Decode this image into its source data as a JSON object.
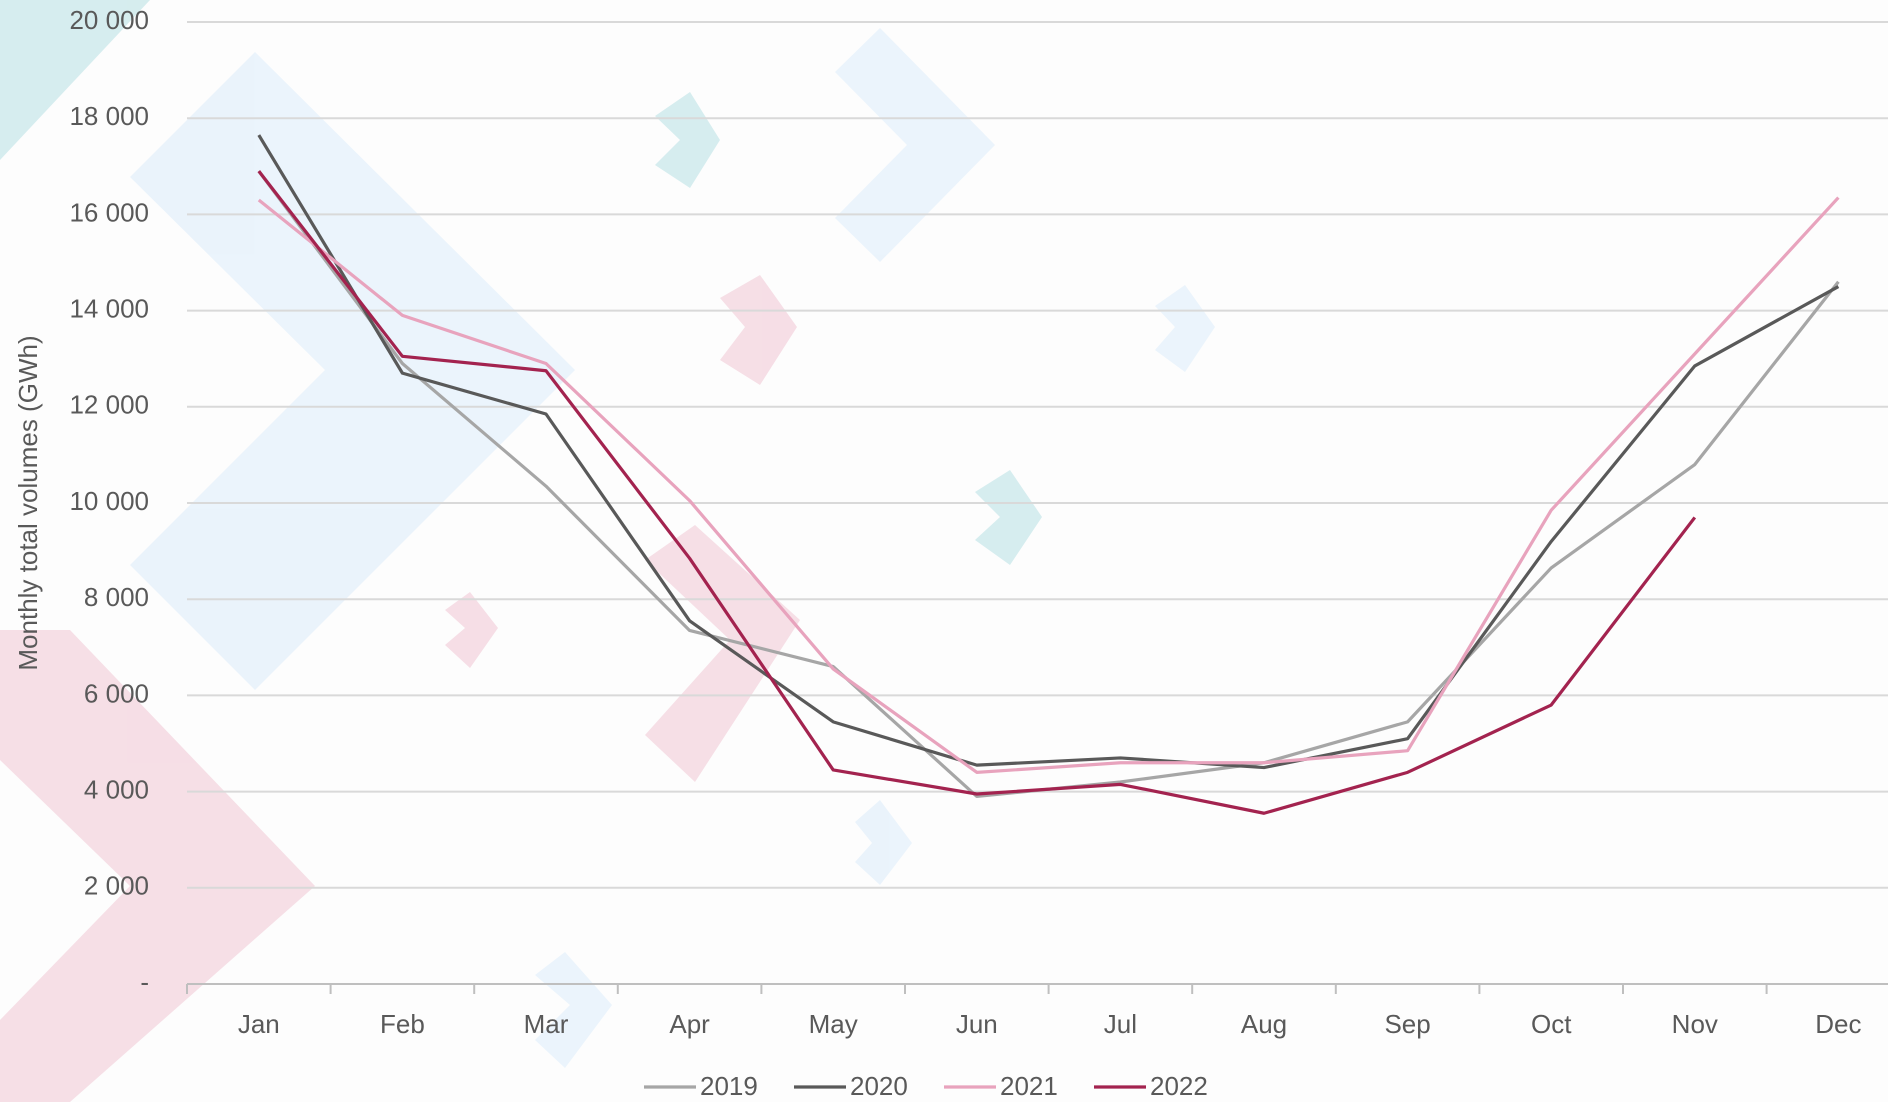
{
  "chart_data": {
    "type": "line",
    "y_axis_label": "Monthly total volumes (GWh)",
    "categories": [
      "Jan",
      "Feb",
      "Mar",
      "Apr",
      "May",
      "Jun",
      "Jul",
      "Aug",
      "Sep",
      "Oct",
      "Nov",
      "Dec"
    ],
    "series": [
      {
        "name": "2019",
        "color": "#a6a6a6",
        "values": [
          16900,
          12900,
          10350,
          7350,
          6600,
          3900,
          4200,
          4600,
          5450,
          8650,
          10800,
          14600
        ]
      },
      {
        "name": "2020",
        "color": "#595959",
        "values": [
          17650,
          12700,
          11850,
          7550,
          5450,
          4550,
          4700,
          4500,
          5100,
          9200,
          12850,
          14500
        ]
      },
      {
        "name": "2021",
        "color": "#e8a3bd",
        "values": [
          16300,
          13900,
          12900,
          10050,
          6550,
          4400,
          4600,
          4600,
          4850,
          9850,
          13100,
          16350
        ]
      },
      {
        "name": "2022",
        "color": "#a3234f",
        "values": [
          16900,
          13050,
          12750,
          8850,
          4450,
          3950,
          4150,
          3550,
          4400,
          5800,
          9700,
          null
        ]
      }
    ],
    "ylim": [
      0,
      20000
    ],
    "yticks": [
      {
        "value": 0,
        "label": "-"
      },
      {
        "value": 2000,
        "label": "2 000"
      },
      {
        "value": 4000,
        "label": "4 000"
      },
      {
        "value": 6000,
        "label": "6 000"
      },
      {
        "value": 8000,
        "label": "8 000"
      },
      {
        "value": 10000,
        "label": "10 000"
      },
      {
        "value": 12000,
        "label": "12 000"
      },
      {
        "value": 14000,
        "label": "14 000"
      },
      {
        "value": 16000,
        "label": "16 000"
      },
      {
        "value": 18000,
        "label": "18 000"
      },
      {
        "value": 20000,
        "label": "20 000"
      }
    ],
    "grid": true,
    "legend": "bottom"
  }
}
